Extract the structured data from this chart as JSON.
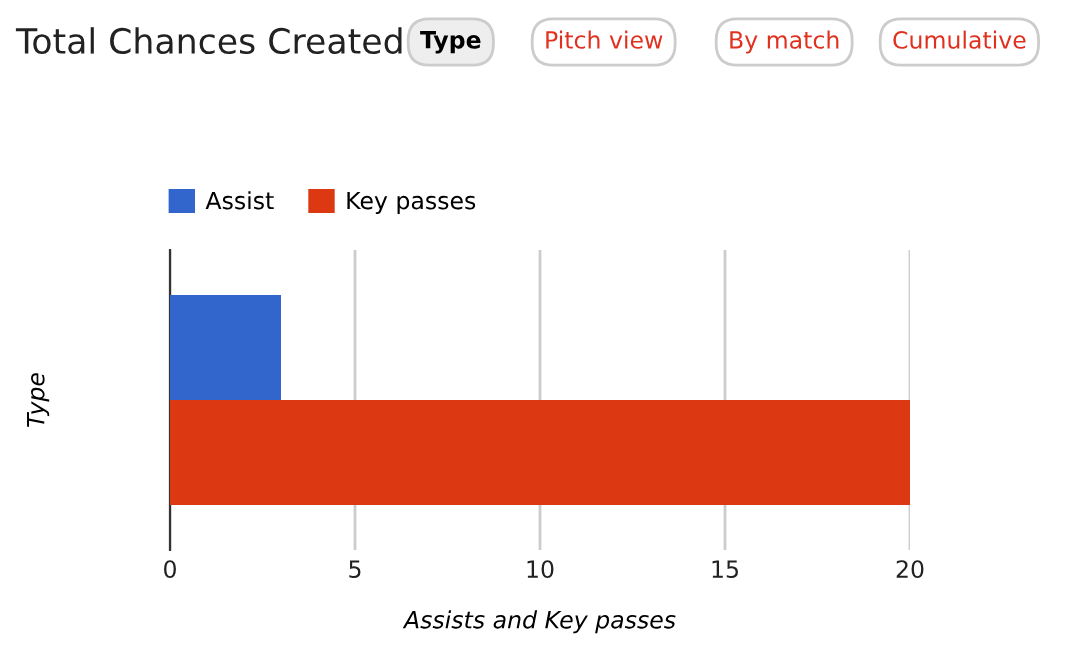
{
  "chart_data": {
    "type": "bar",
    "orientation": "horizontal",
    "title": "Total Chances Created",
    "annotations": [
      "Type",
      "Pitch view",
      "By match",
      "Cumulative"
    ],
    "categories": [
      null
    ],
    "series": [
      {
        "name": "Assist",
        "color": "#3366cc",
        "values": [
          3
        ]
      },
      {
        "name": "Key passes",
        "color": "#dc3912",
        "values": [
          20
        ]
      }
    ],
    "xlabel": "Assists and Key passes",
    "ylabel": "Type",
    "xlim": [
      0,
      20
    ],
    "xticks": [
      0,
      5,
      10,
      15,
      20
    ],
    "grid": "x",
    "legend": "top left"
  }
}
